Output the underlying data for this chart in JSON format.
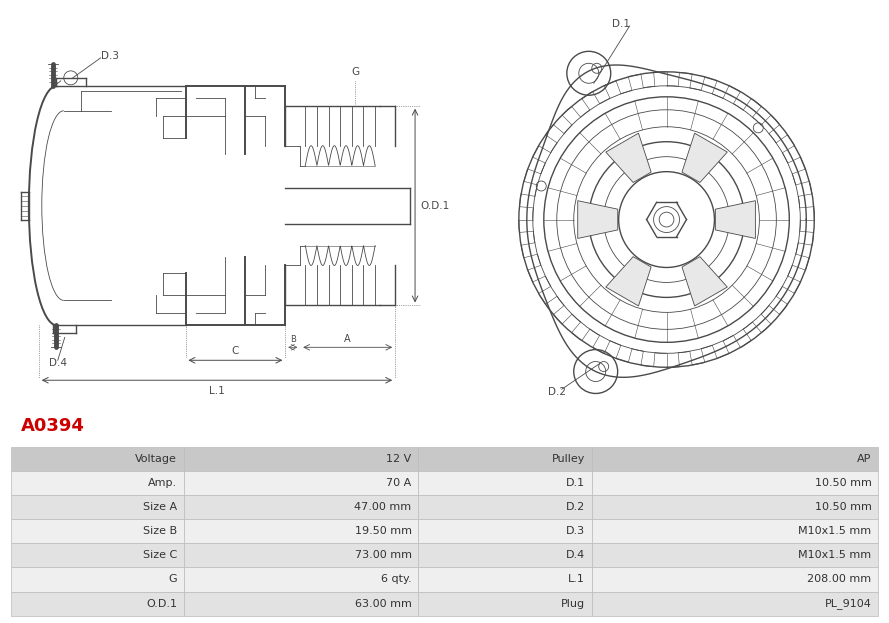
{
  "title": "A0394",
  "title_color": "#cc0000",
  "bg_color": "#ffffff",
  "lc": "#4a4a4a",
  "table_rows": [
    [
      "Voltage",
      "12 V",
      "Pulley",
      "AP"
    ],
    [
      "Amp.",
      "70 A",
      "D.1",
      "10.50 mm"
    ],
    [
      "Size A",
      "47.00 mm",
      "D.2",
      "10.50 mm"
    ],
    [
      "Size B",
      "19.50 mm",
      "D.3",
      "M10x1.5 mm"
    ],
    [
      "Size C",
      "73.00 mm",
      "D.4",
      "M10x1.5 mm"
    ],
    [
      "G",
      "6 qty.",
      "L.1",
      "208.00 mm"
    ],
    [
      "O.D.1",
      "63.00 mm",
      "Plug",
      "PL_9104"
    ]
  ],
  "header_bg": "#c8c8c8",
  "row_bg_odd": "#e2e2e2",
  "row_bg_even": "#efefef",
  "border_color": "#bbbbbb"
}
